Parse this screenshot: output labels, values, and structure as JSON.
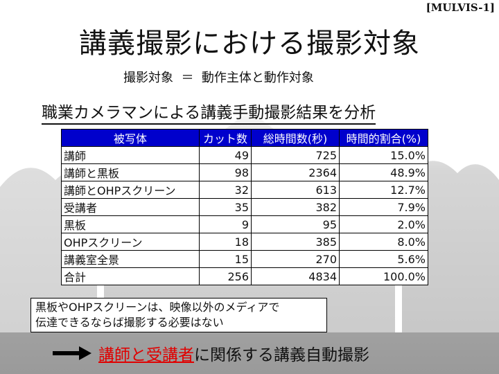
{
  "slide_tag": "[MULVIS-1]",
  "title": "講義撮影における撮影対象",
  "subtitle": "撮影対象  ＝  動作主体と動作対象",
  "section_heading": "職業カメラマンによる講義手動撮影結果を分析",
  "table": {
    "headers": [
      "被写体",
      "カット数",
      "総時間数(秒)",
      "時間的割合(%)"
    ],
    "rows": [
      [
        "講師",
        "49",
        "725",
        "15.0%"
      ],
      [
        "講師と黒板",
        "98",
        "2364",
        "48.9%"
      ],
      [
        "講師とOHPスクリーン",
        "32",
        "613",
        "12.7%"
      ],
      [
        "受講者",
        "35",
        "382",
        "7.9%"
      ],
      [
        "黒板",
        "9",
        "95",
        "2.0%"
      ],
      [
        "OHPスクリーン",
        "18",
        "385",
        "8.0%"
      ],
      [
        "講義室全景",
        "15",
        "270",
        "5.6%"
      ],
      [
        "合計",
        "256",
        "4834",
        "100.0%"
      ]
    ]
  },
  "note": {
    "line1": "黒板やOHPスクリーンは、映像以外のメディアで",
    "line2": "伝達できるならば撮影する必要はない"
  },
  "conclusion": {
    "emphasis": "講師と受講者",
    "rest": "に関係する講義自動撮影"
  },
  "colors": {
    "table_header_bg": "#0000cc",
    "emphasis_red": "#e00000"
  }
}
